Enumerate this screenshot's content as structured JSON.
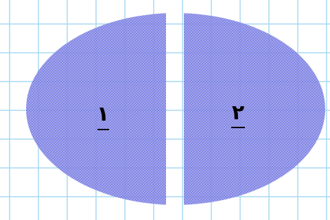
{
  "labels": {
    "left": "١",
    "right": "٢"
  }
}
